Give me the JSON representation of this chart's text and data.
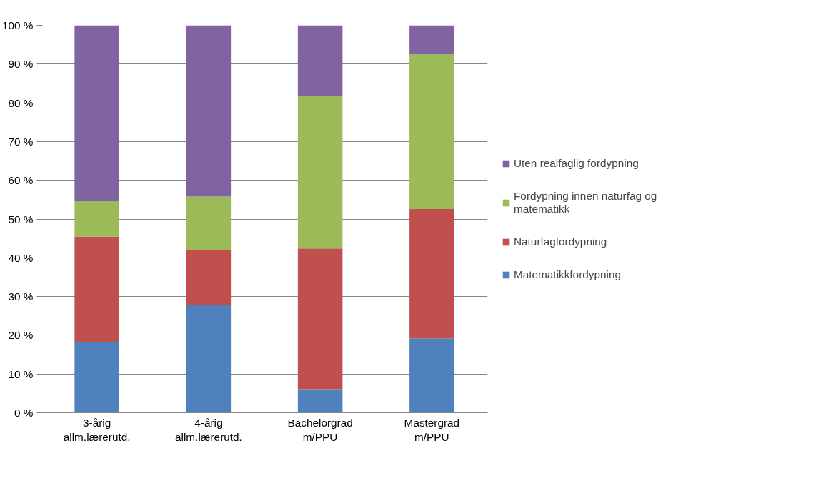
{
  "chart_data": {
    "type": "bar",
    "stacked": true,
    "categories": [
      "3-årig allm.lærerutd.",
      "4-årig allm.lærerutd.",
      "Bachelorgrad m/PPU",
      "Mastergrad m/PPU"
    ],
    "series": [
      {
        "name": "Matematikkfordypning",
        "color": "#4f81bd",
        "values": [
          18.2,
          27.9,
          6.1,
          19.2
        ]
      },
      {
        "name": "Naturfagfordypning",
        "color": "#c0504d",
        "values": [
          27.3,
          14.0,
          36.3,
          33.4
        ]
      },
      {
        "name": "Fordypning innen naturfag og matematikk",
        "color": "#9bbb59",
        "values": [
          9.1,
          13.9,
          39.4,
          40.0
        ]
      },
      {
        "name": "Uten realfaglig fordypning",
        "color": "#8064a2",
        "values": [
          45.4,
          44.2,
          18.2,
          7.4
        ]
      }
    ],
    "ylim": [
      0,
      100
    ],
    "yticks": [
      {
        "value": 0,
        "label": "0 %"
      },
      {
        "value": 10,
        "label": "10 %"
      },
      {
        "value": 20,
        "label": "20 %"
      },
      {
        "value": 30,
        "label": "30 %"
      },
      {
        "value": 40,
        "label": "40 %"
      },
      {
        "value": 50,
        "label": "50 %"
      },
      {
        "value": 60,
        "label": "60 %"
      },
      {
        "value": 70,
        "label": "70 %"
      },
      {
        "value": 80,
        "label": "80 %"
      },
      {
        "value": 90,
        "label": "90 %"
      },
      {
        "value": 100,
        "label": "100 %"
      }
    ],
    "grid": "y",
    "legend": "right"
  }
}
